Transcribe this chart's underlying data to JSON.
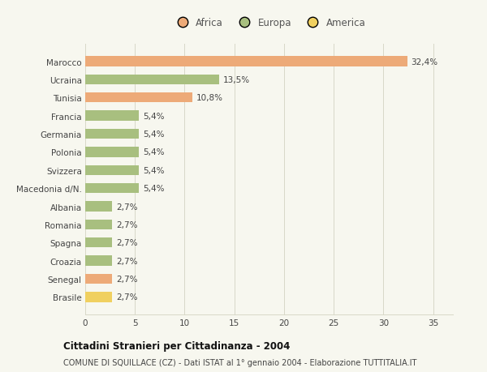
{
  "countries": [
    "Marocco",
    "Ucraina",
    "Tunisia",
    "Francia",
    "Germania",
    "Polonia",
    "Svizzera",
    "Macedonia d/N.",
    "Albania",
    "Romania",
    "Spagna",
    "Croazia",
    "Senegal",
    "Brasile"
  ],
  "values": [
    32.4,
    13.5,
    10.8,
    5.4,
    5.4,
    5.4,
    5.4,
    5.4,
    2.7,
    2.7,
    2.7,
    2.7,
    2.7,
    2.7
  ],
  "labels": [
    "32,4%",
    "13,5%",
    "10,8%",
    "5,4%",
    "5,4%",
    "5,4%",
    "5,4%",
    "5,4%",
    "2,7%",
    "2,7%",
    "2,7%",
    "2,7%",
    "2,7%",
    "2,7%"
  ],
  "continents": [
    "Africa",
    "Europa",
    "Africa",
    "Europa",
    "Europa",
    "Europa",
    "Europa",
    "Europa",
    "Europa",
    "Europa",
    "Europa",
    "Europa",
    "Africa",
    "America"
  ],
  "colors": {
    "Africa": "#EDAA78",
    "Europa": "#A8BF7F",
    "America": "#F0D060"
  },
  "legend_labels": [
    "Africa",
    "Europa",
    "America"
  ],
  "legend_colors": [
    "#EDAA78",
    "#A8BF7F",
    "#F0D060"
  ],
  "xlim": [
    0,
    37
  ],
  "xticks": [
    0,
    5,
    10,
    15,
    20,
    25,
    30,
    35
  ],
  "title": "Cittadini Stranieri per Cittadinanza - 2004",
  "subtitle": "COMUNE DI SQUILLACE (CZ) - Dati ISTAT al 1° gennaio 2004 - Elaborazione TUTTITALIA.IT",
  "bg_color": "#f7f7ef",
  "grid_color": "#d8d8c8"
}
